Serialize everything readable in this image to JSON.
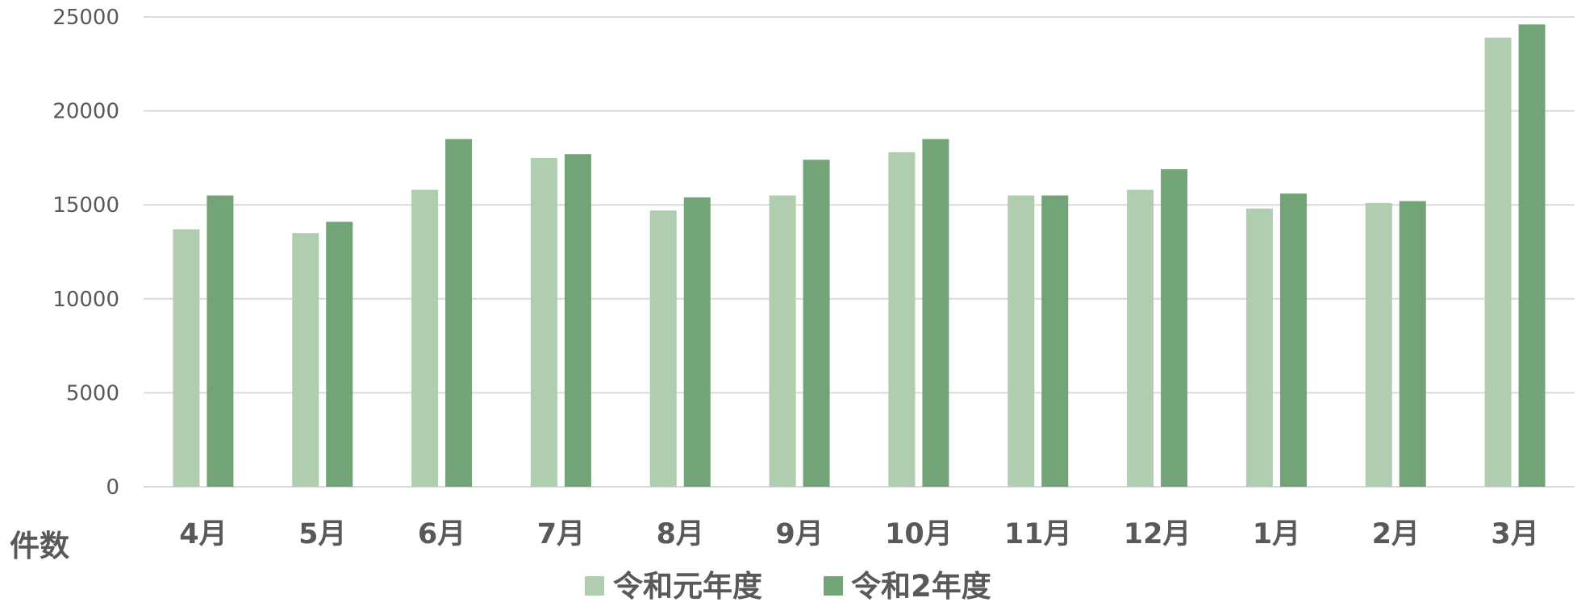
{
  "chart_data": {
    "type": "bar",
    "title": "",
    "xlabel": "",
    "ylabel": "件数",
    "ylim": [
      0,
      25000
    ],
    "yticks": [
      0,
      5000,
      10000,
      15000,
      20000,
      25000
    ],
    "grid": true,
    "legend_position": "bottom",
    "categories": [
      "4月",
      "5月",
      "6月",
      "7月",
      "8月",
      "9月",
      "10月",
      "11月",
      "12月",
      "1月",
      "2月",
      "3月"
    ],
    "series": [
      {
        "name": "令和元年度",
        "color": "#b0cdb0",
        "values": [
          13700,
          13500,
          15800,
          17500,
          14700,
          15500,
          17800,
          15500,
          15800,
          14800,
          15100,
          23900
        ]
      },
      {
        "name": "令和2年度",
        "color": "#72a477",
        "values": [
          15500,
          14100,
          18500,
          17700,
          15400,
          17400,
          18500,
          15500,
          16900,
          15600,
          15200,
          24600
        ]
      }
    ]
  }
}
